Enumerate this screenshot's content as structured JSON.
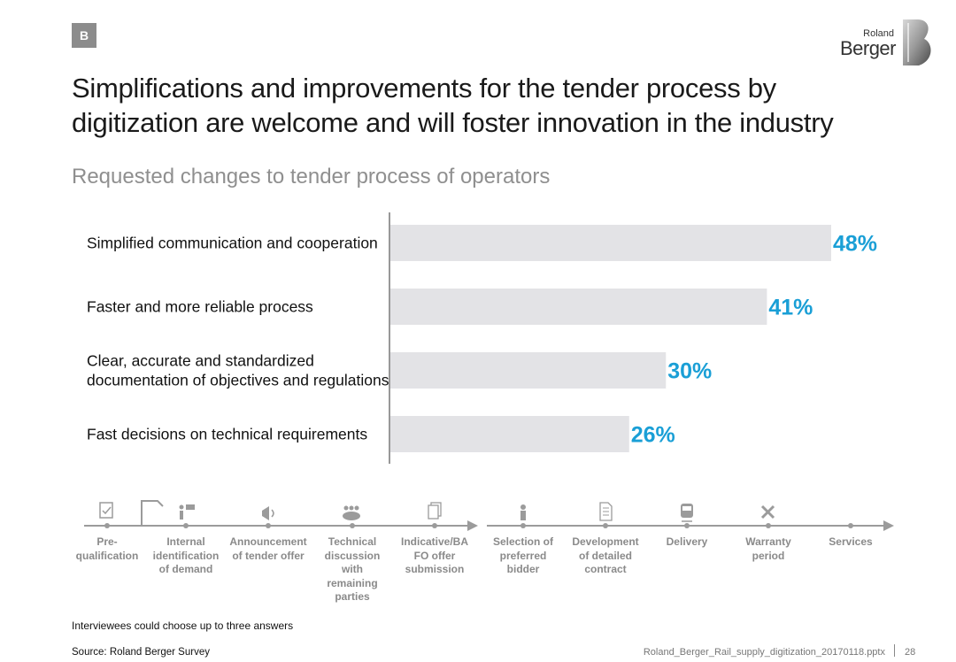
{
  "badge": "B",
  "logo": {
    "top": "Roland",
    "bottom": "Berger",
    "mark": "B"
  },
  "title": "Simplifications and improvements for the tender process by digitization are welcome and will foster innovation in the industry",
  "subtitle": "Requested changes to tender process of operators",
  "colors": {
    "bar": "#e3e3e6",
    "value": "#1a9fd6",
    "axis": "#555555",
    "process": "#9b9b9b"
  },
  "chart_data": {
    "type": "bar",
    "orientation": "horizontal",
    "categories": [
      "Simplified communication and cooperation",
      "Faster and more reliable process",
      "Clear, accurate and standardized documentation of objectives and regulations",
      "Fast decisions on technical requirements"
    ],
    "category_lines": [
      [
        "Simplified communication and cooperation"
      ],
      [
        "Faster and more reliable process"
      ],
      [
        "Clear, accurate and standardized",
        "documentation of objectives and regulations"
      ],
      [
        "Fast decisions on technical requirements"
      ]
    ],
    "values": [
      48,
      41,
      30,
      26
    ],
    "value_labels": [
      "48%",
      "41%",
      "30%",
      "26%"
    ],
    "unit": "%",
    "xlim": [
      0,
      48
    ]
  },
  "process_steps": [
    {
      "icon": "clipboard-icon",
      "lines": [
        "Pre-",
        "qualification"
      ]
    },
    {
      "icon": "person-sign-icon",
      "lines": [
        "Internal",
        "identification",
        "of demand"
      ]
    },
    {
      "icon": "megaphone-icon",
      "lines": [
        "Announcement",
        "of tender offer"
      ]
    },
    {
      "icon": "group-icon",
      "lines": [
        "Technical",
        "discussion",
        "with",
        "remaining",
        "parties"
      ]
    },
    {
      "icon": "documents-icon",
      "lines": [
        "Indicative/BA",
        "FO offer",
        "submission"
      ]
    },
    {
      "icon": "person-icon",
      "lines": [
        "Selection of",
        "preferred",
        "bidder"
      ]
    },
    {
      "icon": "contract-icon",
      "lines": [
        "Development",
        "of detailed",
        "contract"
      ]
    },
    {
      "icon": "train-icon",
      "lines": [
        "Delivery"
      ]
    },
    {
      "icon": "tools-icon",
      "lines": [
        "Warranty",
        "period"
      ]
    },
    {
      "icon": "",
      "lines": [
        "Services"
      ]
    }
  ],
  "footer": {
    "note": "Interviewees could choose up to three answers",
    "source": "Source: Roland Berger Survey",
    "file": "Roland_Berger_Rail_supply_digitization_20170118.pptx",
    "page": "28"
  }
}
